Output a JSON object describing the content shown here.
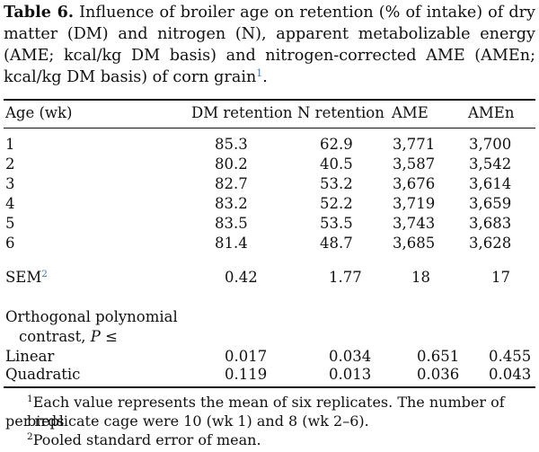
{
  "caption": {
    "label": "Table 6.",
    "text": "Influence of broiler age on retention (% of intake) of dry matter (DM) and nitrogen (N), apparent metabolizable energy (AME; kcal/kg DM basis) and nitrogen-corrected AME (AMEn; kcal/kg DM basis) of corn grain",
    "footnote_ref": "1",
    "end": "."
  },
  "headers": [
    "Age (wk)",
    "DM retention",
    "N retention",
    "AME",
    "AMEn"
  ],
  "rows": [
    [
      "1",
      "85.3",
      "62.9",
      "3,771",
      "3,700"
    ],
    [
      "2",
      "80.2",
      "40.5",
      "3,587",
      "3,542"
    ],
    [
      "3",
      "82.7",
      "53.2",
      "3,676",
      "3,614"
    ],
    [
      "4",
      "83.2",
      "52.2",
      "3,719",
      "3,659"
    ],
    [
      "5",
      "83.5",
      "53.5",
      "3,743",
      "3,683"
    ],
    [
      "6",
      "81.4",
      "48.7",
      "3,685",
      "3,628"
    ]
  ],
  "sem": {
    "label": "SEM",
    "ref": "2",
    "values": [
      "0.42",
      "1.77",
      "18",
      "17"
    ]
  },
  "contrast": {
    "label_line1": "Orthogonal polynomial",
    "label_line2": "contrast,",
    "p_symbol": "P",
    "le": "≤",
    "linear": {
      "label": "Linear",
      "values": [
        "0.017",
        "0.034",
        "0.651",
        "0.455"
      ]
    },
    "quadratic": {
      "label": "Quadratic",
      "values": [
        "0.119",
        "0.013",
        "0.036",
        "0.043"
      ]
    }
  },
  "footnotes": {
    "f1_ref": "1",
    "f1_line1": "Each value represents the mean of six replicates. The number of birds",
    "f1_line2": "per replicate cage were 10 (wk 1) and 8 (wk 2–6).",
    "f2_ref": "2",
    "f2_text": "Pooled standard error of mean."
  }
}
